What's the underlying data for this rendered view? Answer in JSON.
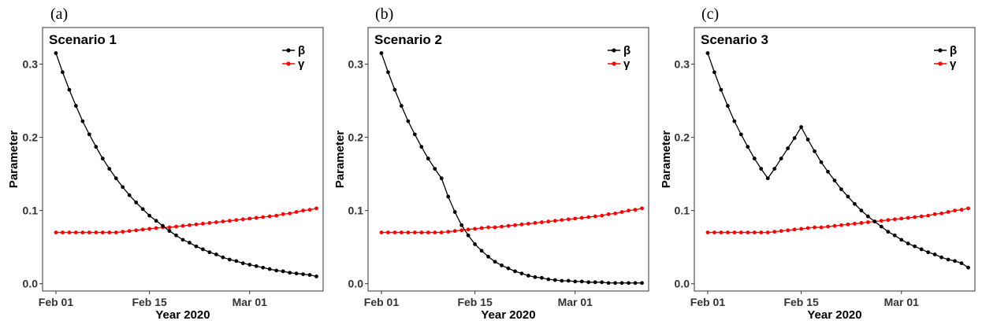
{
  "figure": {
    "panels": [
      {
        "letter": "(a)",
        "title": "Scenario 1"
      },
      {
        "letter": "(b)",
        "title": "Scenario 2"
      },
      {
        "letter": "(c)",
        "title": "Scenario 3"
      }
    ]
  },
  "chart_data": [
    {
      "type": "line",
      "title": "Scenario 1",
      "xlabel": "Year 2020",
      "ylabel": "Parameter",
      "x_ticks": [
        "Feb 01",
        "Feb 15",
        "Mar 01"
      ],
      "y_ticks": [
        "0.0",
        "0.1",
        "0.2",
        "0.3"
      ],
      "ylim": [
        -0.01,
        0.35
      ],
      "xlim": [
        "2020-01-30",
        "2020-03-12"
      ],
      "x": [
        "2020-02-01",
        "2020-02-02",
        "2020-02-03",
        "2020-02-04",
        "2020-02-05",
        "2020-02-06",
        "2020-02-07",
        "2020-02-08",
        "2020-02-09",
        "2020-02-10",
        "2020-02-11",
        "2020-02-12",
        "2020-02-13",
        "2020-02-14",
        "2020-02-15",
        "2020-02-16",
        "2020-02-17",
        "2020-02-18",
        "2020-02-19",
        "2020-02-20",
        "2020-02-21",
        "2020-02-22",
        "2020-02-23",
        "2020-02-24",
        "2020-02-25",
        "2020-02-26",
        "2020-02-27",
        "2020-02-28",
        "2020-02-29",
        "2020-03-01",
        "2020-03-02",
        "2020-03-03",
        "2020-03-04",
        "2020-03-05",
        "2020-03-06",
        "2020-03-07",
        "2020-03-08",
        "2020-03-09",
        "2020-03-10",
        "2020-03-11"
      ],
      "legend_position": "top-right",
      "series": [
        {
          "name": "β",
          "color": "#000000",
          "values": [
            0.315,
            0.289,
            0.265,
            0.243,
            0.222,
            0.204,
            0.187,
            0.171,
            0.157,
            0.144,
            0.132,
            0.121,
            0.111,
            0.102,
            0.093,
            0.086,
            0.079,
            0.072,
            0.066,
            0.06,
            0.056,
            0.051,
            0.047,
            0.043,
            0.04,
            0.036,
            0.033,
            0.031,
            0.028,
            0.026,
            0.024,
            0.022,
            0.02,
            0.018,
            0.017,
            0.015,
            0.014,
            0.013,
            0.012,
            0.01
          ]
        },
        {
          "name": "γ",
          "color": "#ff0000",
          "values": [
            0.07,
            0.07,
            0.07,
            0.07,
            0.07,
            0.07,
            0.07,
            0.07,
            0.07,
            0.07,
            0.071,
            0.072,
            0.073,
            0.074,
            0.075,
            0.076,
            0.077,
            0.077,
            0.078,
            0.079,
            0.08,
            0.081,
            0.082,
            0.083,
            0.084,
            0.085,
            0.086,
            0.087,
            0.088,
            0.089,
            0.09,
            0.091,
            0.092,
            0.093,
            0.095,
            0.096,
            0.098,
            0.1,
            0.101,
            0.103
          ]
        }
      ]
    },
    {
      "type": "line",
      "title": "Scenario 2",
      "xlabel": "Year 2020",
      "ylabel": "Parameter",
      "x_ticks": [
        "Feb 01",
        "Feb 15",
        "Mar 01"
      ],
      "y_ticks": [
        "0.0",
        "0.1",
        "0.2",
        "0.3"
      ],
      "ylim": [
        -0.01,
        0.35
      ],
      "xlim": [
        "2020-01-30",
        "2020-03-12"
      ],
      "x": [
        "2020-02-01",
        "2020-02-02",
        "2020-02-03",
        "2020-02-04",
        "2020-02-05",
        "2020-02-06",
        "2020-02-07",
        "2020-02-08",
        "2020-02-09",
        "2020-02-10",
        "2020-02-11",
        "2020-02-12",
        "2020-02-13",
        "2020-02-14",
        "2020-02-15",
        "2020-02-16",
        "2020-02-17",
        "2020-02-18",
        "2020-02-19",
        "2020-02-20",
        "2020-02-21",
        "2020-02-22",
        "2020-02-23",
        "2020-02-24",
        "2020-02-25",
        "2020-02-26",
        "2020-02-27",
        "2020-02-28",
        "2020-02-29",
        "2020-03-01",
        "2020-03-02",
        "2020-03-03",
        "2020-03-04",
        "2020-03-05",
        "2020-03-06",
        "2020-03-07",
        "2020-03-08",
        "2020-03-09",
        "2020-03-10",
        "2020-03-11"
      ],
      "legend_position": "top-right",
      "series": [
        {
          "name": "β",
          "color": "#000000",
          "values": [
            0.315,
            0.289,
            0.265,
            0.243,
            0.222,
            0.204,
            0.187,
            0.171,
            0.157,
            0.144,
            0.119,
            0.098,
            0.08,
            0.066,
            0.054,
            0.045,
            0.037,
            0.03,
            0.025,
            0.021,
            0.017,
            0.014,
            0.011,
            0.009,
            0.008,
            0.006,
            0.005,
            0.004,
            0.004,
            0.003,
            0.003,
            0.002,
            0.002,
            0.002,
            0.001,
            0.001,
            0.001,
            0.001,
            0.001,
            0.001
          ]
        },
        {
          "name": "γ",
          "color": "#ff0000",
          "values": [
            0.07,
            0.07,
            0.07,
            0.07,
            0.07,
            0.07,
            0.07,
            0.07,
            0.07,
            0.07,
            0.071,
            0.072,
            0.073,
            0.074,
            0.075,
            0.076,
            0.077,
            0.077,
            0.078,
            0.079,
            0.08,
            0.081,
            0.082,
            0.083,
            0.084,
            0.085,
            0.086,
            0.087,
            0.088,
            0.089,
            0.09,
            0.091,
            0.092,
            0.093,
            0.095,
            0.096,
            0.098,
            0.1,
            0.101,
            0.103
          ]
        }
      ]
    },
    {
      "type": "line",
      "title": "Scenario 3",
      "xlabel": "Year 2020",
      "ylabel": "Parameter",
      "x_ticks": [
        "Feb 01",
        "Feb 15",
        "Mar 01"
      ],
      "y_ticks": [
        "0.0",
        "0.1",
        "0.2",
        "0.3"
      ],
      "ylim": [
        -0.01,
        0.35
      ],
      "xlim": [
        "2020-01-30",
        "2020-03-12"
      ],
      "x": [
        "2020-02-01",
        "2020-02-02",
        "2020-02-03",
        "2020-02-04",
        "2020-02-05",
        "2020-02-06",
        "2020-02-07",
        "2020-02-08",
        "2020-02-09",
        "2020-02-10",
        "2020-02-11",
        "2020-02-12",
        "2020-02-13",
        "2020-02-14",
        "2020-02-15",
        "2020-02-16",
        "2020-02-17",
        "2020-02-18",
        "2020-02-19",
        "2020-02-20",
        "2020-02-21",
        "2020-02-22",
        "2020-02-23",
        "2020-02-24",
        "2020-02-25",
        "2020-02-26",
        "2020-02-27",
        "2020-02-28",
        "2020-02-29",
        "2020-03-01",
        "2020-03-02",
        "2020-03-03",
        "2020-03-04",
        "2020-03-05",
        "2020-03-06",
        "2020-03-07",
        "2020-03-08",
        "2020-03-09",
        "2020-03-10",
        "2020-03-11"
      ],
      "legend_position": "top-right",
      "series": [
        {
          "name": "β",
          "color": "#000000",
          "values": [
            0.315,
            0.289,
            0.265,
            0.243,
            0.222,
            0.204,
            0.187,
            0.171,
            0.157,
            0.144,
            0.157,
            0.171,
            0.185,
            0.199,
            0.214,
            0.197,
            0.181,
            0.166,
            0.153,
            0.141,
            0.129,
            0.119,
            0.109,
            0.1,
            0.092,
            0.085,
            0.078,
            0.071,
            0.066,
            0.06,
            0.055,
            0.051,
            0.047,
            0.043,
            0.04,
            0.036,
            0.033,
            0.031,
            0.028,
            0.022
          ]
        },
        {
          "name": "γ",
          "color": "#ff0000",
          "values": [
            0.07,
            0.07,
            0.07,
            0.07,
            0.07,
            0.07,
            0.07,
            0.07,
            0.07,
            0.07,
            0.071,
            0.072,
            0.073,
            0.074,
            0.075,
            0.076,
            0.077,
            0.077,
            0.078,
            0.079,
            0.08,
            0.081,
            0.082,
            0.083,
            0.084,
            0.085,
            0.086,
            0.087,
            0.088,
            0.089,
            0.09,
            0.091,
            0.092,
            0.093,
            0.095,
            0.096,
            0.098,
            0.1,
            0.101,
            0.103
          ]
        }
      ]
    }
  ]
}
